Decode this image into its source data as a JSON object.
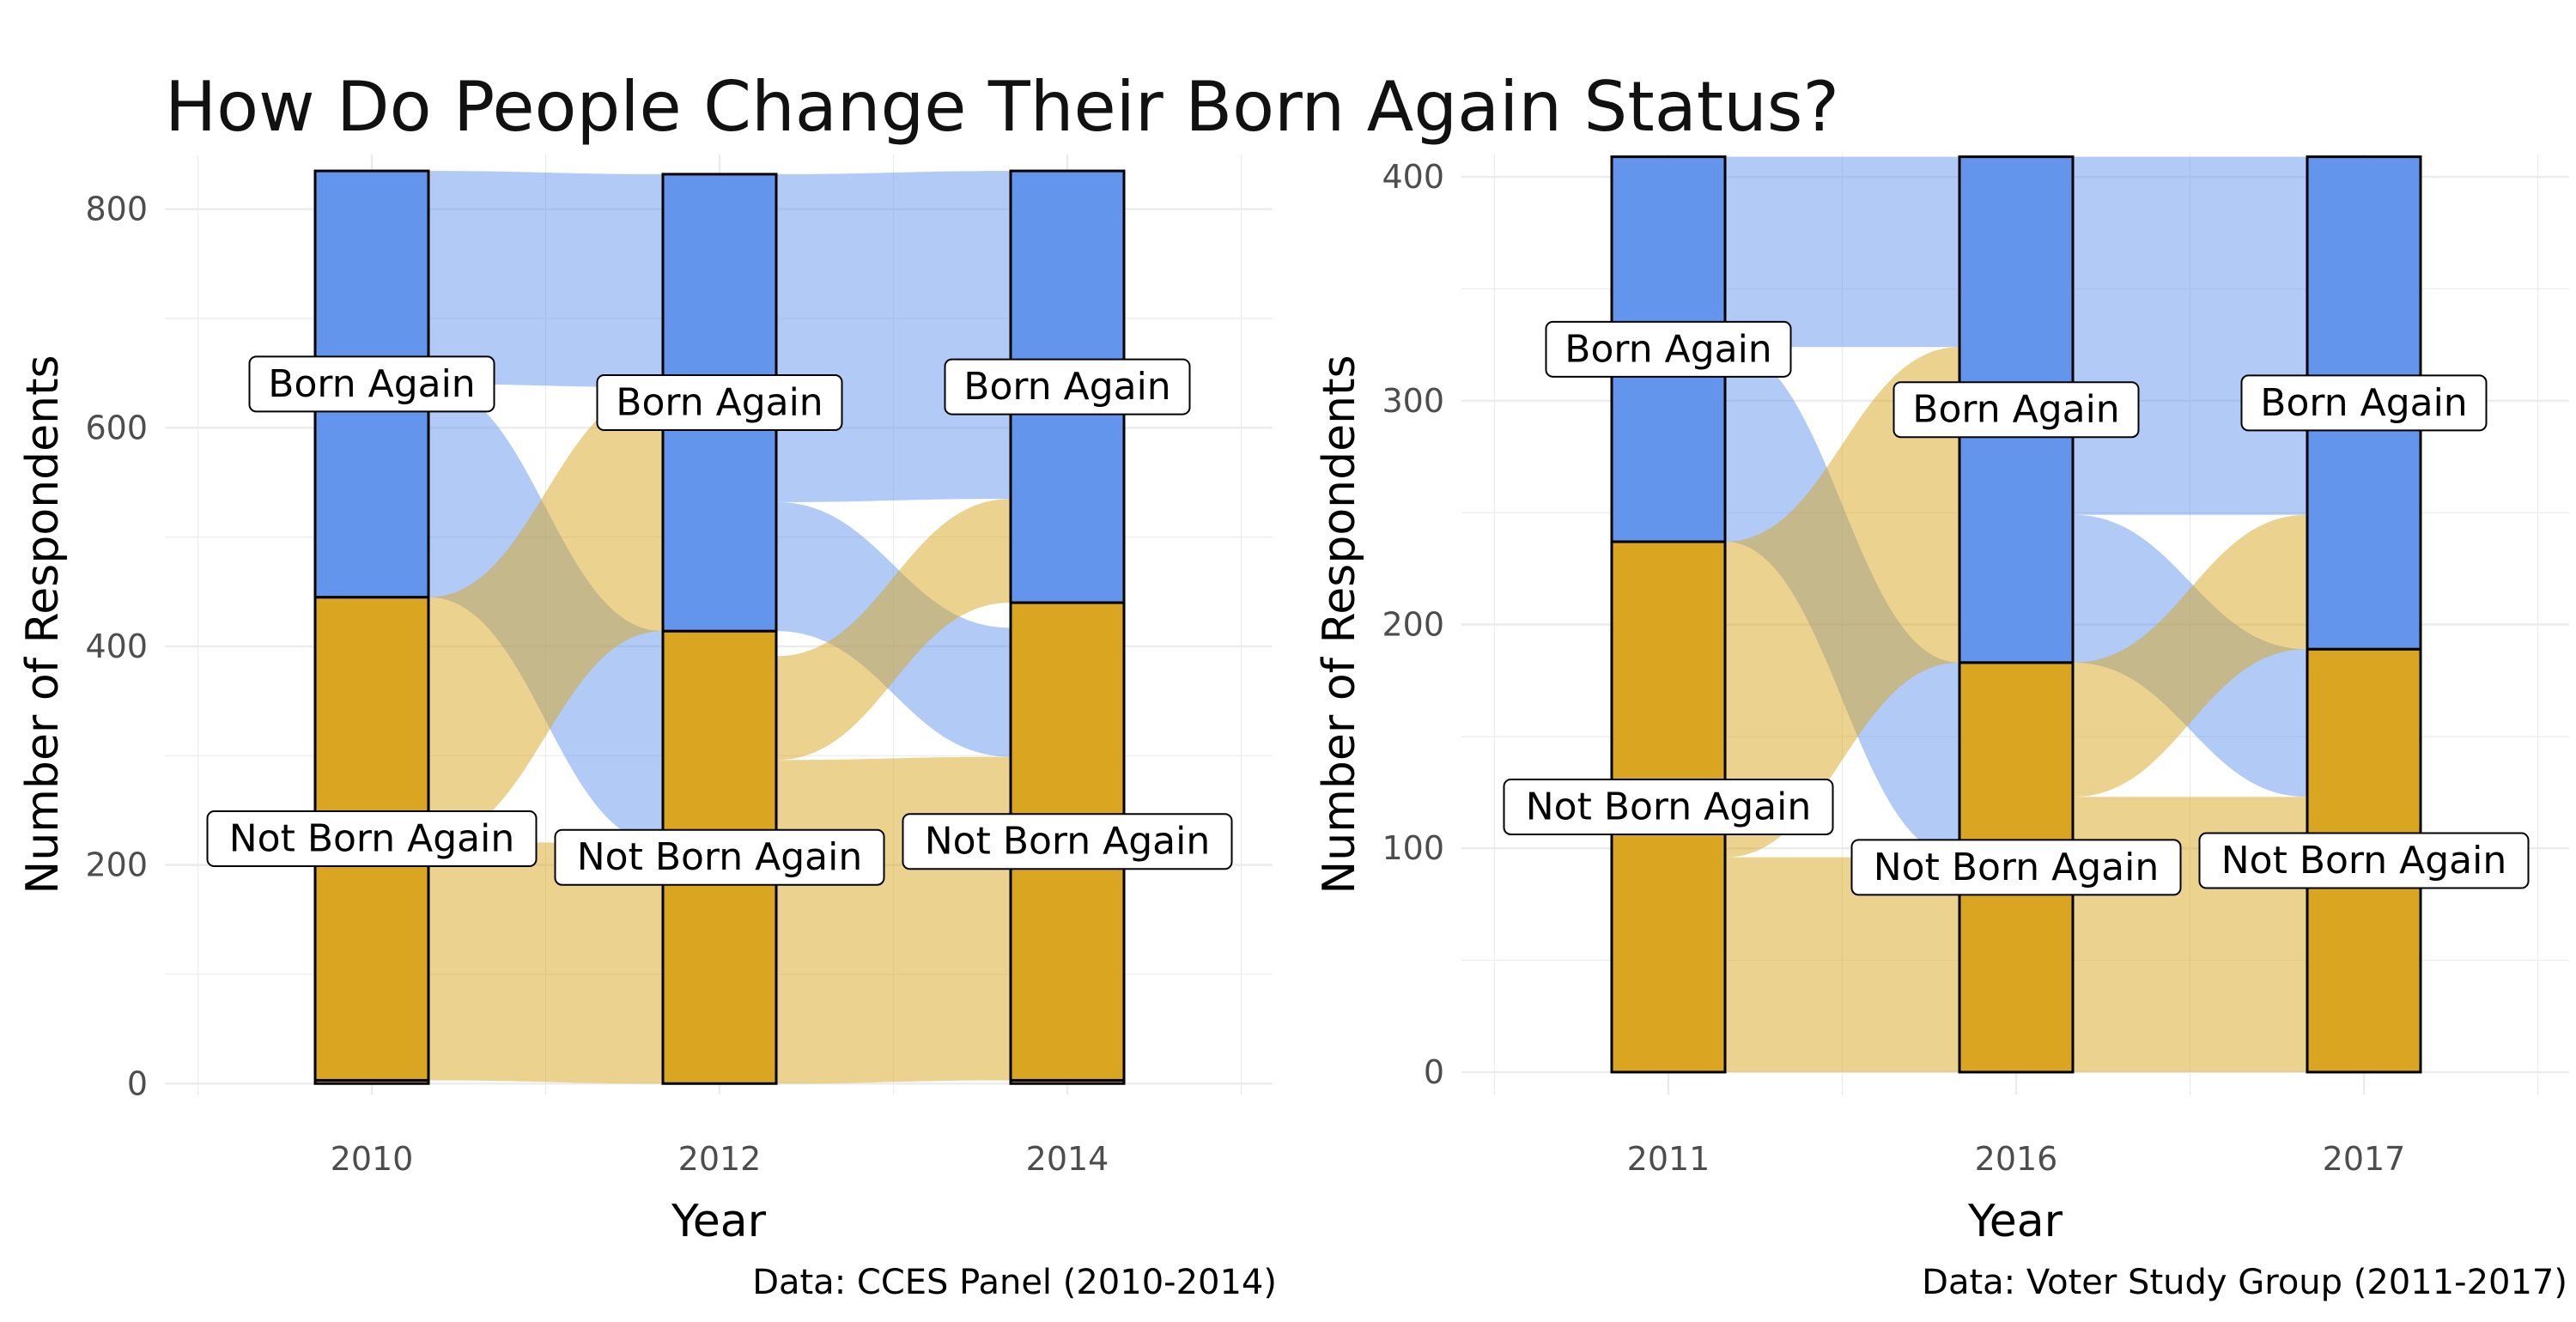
{
  "title": "How Do People Change Their Born Again Status?",
  "colors": {
    "born_again": "#6495ED",
    "not_born_again": "#DAA520",
    "grid": "#EBEBEB",
    "tick_label": "#4D4D4D",
    "axis_title": "#000000"
  },
  "chart_data": [
    {
      "type": "alluvial",
      "xlabel": "Year",
      "ylabel": "Number of Respondents",
      "caption": "Data: CCES Panel (2010-2014)",
      "categories": [
        "2010",
        "2012",
        "2014"
      ],
      "ylim": [
        -10,
        850
      ],
      "yticks": [
        0,
        200,
        400,
        600,
        800
      ],
      "stratum_labels": {
        "top": "Born Again",
        "bottom": "Not Born Again"
      },
      "series": [
        {
          "name": "Born Again",
          "values": [
            390,
            418,
            395
          ]
        },
        {
          "name": "Not Born Again",
          "values": [
            442,
            414,
            437
          ]
        },
        {
          "name": "",
          "values": [
            3,
            0,
            3
          ]
        }
      ],
      "flows": [
        {
          "from": "Born Again",
          "to": "Born Again",
          "values": [
            195,
            300
          ]
        },
        {
          "from": "Born Again",
          "to": "Not Born Again",
          "values": [
            195,
            118
          ]
        },
        {
          "from": "Not Born Again",
          "to": "Born Again",
          "values": [
            223,
            95
          ]
        },
        {
          "from": "Not Born Again",
          "to": "Not Born Again",
          "values": [
            219,
            296
          ]
        }
      ]
    },
    {
      "type": "alluvial",
      "xlabel": "Year",
      "ylabel": "Number of Respondents",
      "caption": "Data: Voter Study Group (2011-2017)",
      "categories": [
        "2011",
        "2016",
        "2017"
      ],
      "ylim": [
        -10,
        410
      ],
      "yticks": [
        0,
        100,
        200,
        300,
        400
      ],
      "stratum_labels": {
        "top": "Born Again",
        "bottom": "Not Born Again"
      },
      "series": [
        {
          "name": "Born Again",
          "values": [
            172,
            226,
            220
          ]
        },
        {
          "name": "Not Born Again",
          "values": [
            237,
            183,
            189
          ]
        }
      ],
      "flows": [
        {
          "from": "Born Again",
          "to": "Born Again",
          "values": [
            85,
            160
          ]
        },
        {
          "from": "Born Again",
          "to": "Not Born Again",
          "values": [
            87,
            66
          ]
        },
        {
          "from": "Not Born Again",
          "to": "Born Again",
          "values": [
            141,
            60
          ]
        },
        {
          "from": "Not Born Again",
          "to": "Not Born Again",
          "values": [
            96,
            123
          ]
        }
      ]
    }
  ]
}
